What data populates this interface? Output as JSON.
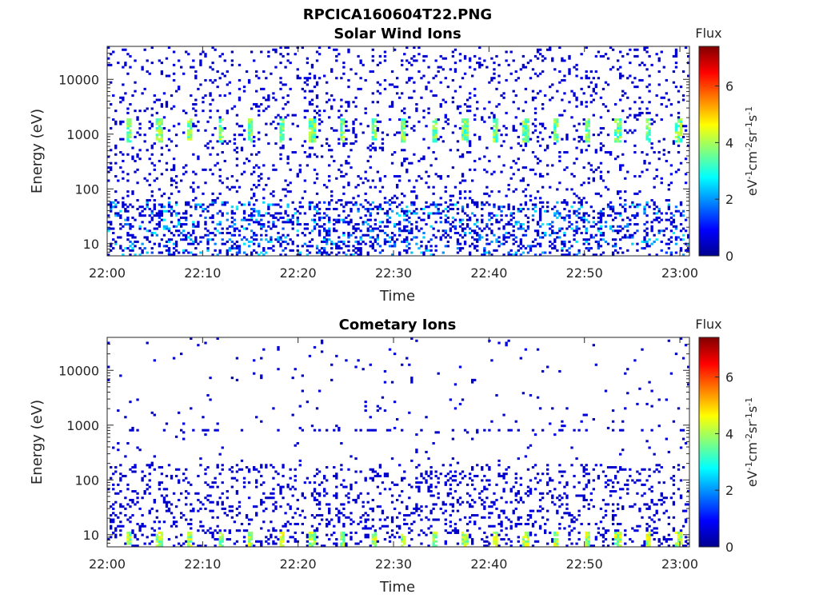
{
  "figure": {
    "title": "RPCICA160604T22.PNG"
  },
  "chart_data": [
    {
      "type": "heatmap",
      "title": "Solar Wind Ions",
      "xlabel": "Time",
      "ylabel": "Energy (eV)",
      "x_range": [
        "22:00",
        "23:01"
      ],
      "y_scale": "log",
      "y_range": [
        6,
        40000
      ],
      "x_ticks": [
        "22:00",
        "22:10",
        "22:20",
        "22:30",
        "22:40",
        "22:50",
        "23:00"
      ],
      "y_ticks": [
        "10",
        "100",
        "1000",
        "10000"
      ],
      "colorbar": {
        "title": "Flux",
        "label": "eV-1cm-2sr-1s-1",
        "range": [
          0,
          7.4
        ],
        "ticks": [
          "0",
          "2",
          "4",
          "6"
        ],
        "colormap": "jet"
      },
      "grid": false,
      "features": {
        "periodic_peak_energy_eV": [
          800,
          1700
        ],
        "periodic_peak_flux": 3.8,
        "sweep_period_minutes": 3.2,
        "background_flux": 0.6,
        "low_energy_band_eV": [
          6,
          60
        ]
      }
    },
    {
      "type": "heatmap",
      "title": "Cometary Ions",
      "xlabel": "Time",
      "ylabel": "Energy (eV)",
      "x_range": [
        "22:00",
        "23:01"
      ],
      "y_scale": "log",
      "y_range": [
        6,
        40000
      ],
      "x_ticks": [
        "22:00",
        "22:10",
        "22:20",
        "22:30",
        "22:40",
        "22:50",
        "23:00"
      ],
      "y_ticks": [
        "10",
        "100",
        "1000",
        "10000"
      ],
      "colorbar": {
        "title": "Flux",
        "label": "eV-1cm-2sr-1s-1",
        "range": [
          0,
          7.4
        ],
        "ticks": [
          "0",
          "2",
          "4",
          "6"
        ],
        "colormap": "jet"
      },
      "grid": false,
      "features": {
        "periodic_peak_energy_eV": [
          7,
          10
        ],
        "periodic_peak_flux": 4.2,
        "sweep_period_minutes": 3.2,
        "background_flux": 0.6,
        "line_energy_eV": 800,
        "low_energy_band_eV": [
          6,
          200
        ]
      }
    }
  ]
}
